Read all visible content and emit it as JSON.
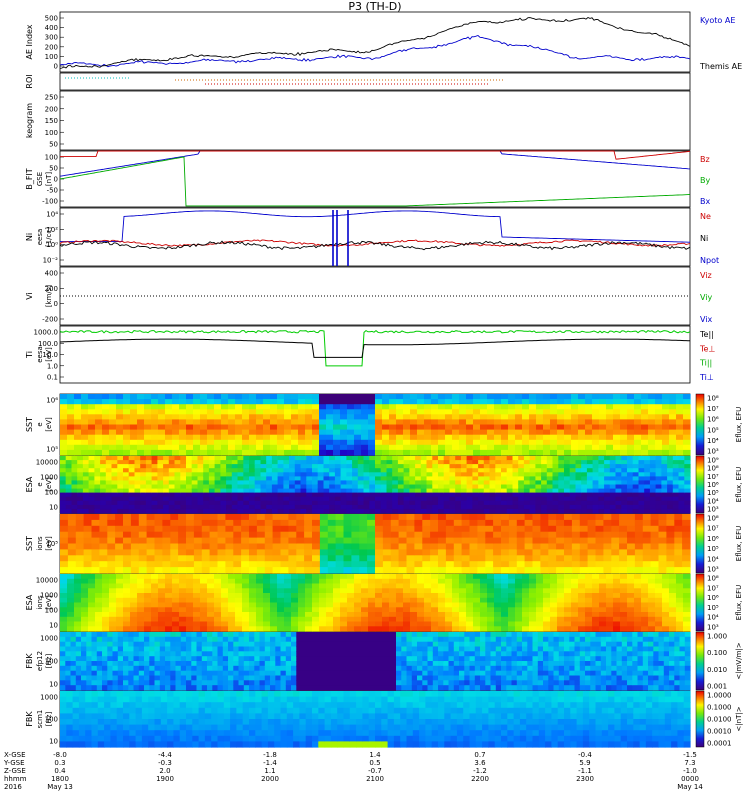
{
  "title": "P3 (TH-D)",
  "panels": [
    {
      "id": "ae",
      "ylabel": "AE Index",
      "unit": "",
      "yticks": [
        "500",
        "400",
        "300",
        "200",
        "100",
        "0"
      ],
      "legend": [
        {
          "text": "Kyoto AE",
          "color": "#0000cc"
        },
        {
          "text": "Themis AE",
          "color": "#000000"
        }
      ]
    },
    {
      "id": "roi",
      "ylabel": "ROI",
      "unit": "",
      "yticks": [],
      "legend": []
    },
    {
      "id": "keogram",
      "ylabel": "keogram",
      "unit": "",
      "yticks": [
        "250",
        "200",
        "150",
        "100",
        "50"
      ],
      "legend": []
    },
    {
      "id": "bfit",
      "ylabel": "B_FIT",
      "unit": "[nT]",
      "sub": "GSE",
      "yticks": [
        "100",
        "50",
        "0",
        "-50",
        "-100"
      ],
      "legend": [
        {
          "text": "Bz",
          "color": "#cc0000"
        },
        {
          "text": "By",
          "color": "#00aa00"
        },
        {
          "text": "Bx",
          "color": "#0000cc"
        }
      ]
    },
    {
      "id": "ni",
      "ylabel": "Ni",
      "unit": "[1/cc]",
      "sub": "eesa",
      "yticks": [
        "10⁴",
        "10²",
        "10⁰",
        "10⁻²"
      ],
      "legend": [
        {
          "text": "Ne",
          "color": "#cc0000"
        },
        {
          "text": "Ni",
          "color": "#000000"
        },
        {
          "text": "Npot",
          "color": "#0000cc"
        }
      ]
    },
    {
      "id": "vi",
      "ylabel": "Vi",
      "unit": "[km/s]",
      "yticks": [
        "400",
        "200",
        "0",
        "-200"
      ],
      "legend": [
        {
          "text": "Viz",
          "color": "#cc0000"
        },
        {
          "text": "Viy",
          "color": "#00aa00"
        },
        {
          "text": "Vix",
          "color": "#0000cc"
        }
      ]
    },
    {
      "id": "ti",
      "ylabel": "Ti",
      "unit": "[eV]",
      "sub": "eesa",
      "yticks": [
        "1000.0",
        "100.0",
        "10.0",
        "1.0",
        "0.1"
      ],
      "legend": [
        {
          "text": "Te||",
          "color": "#000000"
        },
        {
          "text": "Te⊥",
          "color": "#cc0000"
        },
        {
          "text": "Ti||",
          "color": "#00aa00"
        },
        {
          "text": "Ti⊥",
          "color": "#0000cc"
        }
      ]
    },
    {
      "id": "sst_e",
      "ylabel": "SST",
      "unit": "[eV]",
      "sub": "e",
      "yticks": [
        "10⁶",
        "10⁵"
      ],
      "cbar": [
        "10⁸",
        "10⁷",
        "10⁶",
        "10⁵",
        "10⁴",
        "10³"
      ],
      "cbar_label": "Eflux, EFU"
    },
    {
      "id": "esa_e",
      "ylabel": "ESA",
      "unit": "[eV]",
      "sub": "e",
      "yticks": [
        "10000",
        "1000",
        "100",
        "10"
      ],
      "cbar": [
        "10⁹",
        "10⁸",
        "10⁷",
        "10⁶",
        "10⁵",
        "10⁴",
        "10³"
      ],
      "cbar_label": "Eflux, EFU"
    },
    {
      "id": "sst_i",
      "ylabel": "SST",
      "unit": "[eV]",
      "sub": "ions",
      "yticks": [
        "10⁵"
      ],
      "cbar": [
        "10⁸",
        "10⁷",
        "10⁶",
        "10⁵",
        "10⁴",
        "10³"
      ],
      "cbar_label": "Eflux, EFU"
    },
    {
      "id": "esa_i",
      "ylabel": "ESA",
      "unit": "[eV]",
      "sub": "ions",
      "yticks": [
        "10000",
        "1000",
        "100",
        "10"
      ],
      "cbar": [
        "10⁸",
        "10⁷",
        "10⁶",
        "10⁵",
        "10⁴",
        "10³"
      ],
      "cbar_label": "Eflux, EFU"
    },
    {
      "id": "fbk_e",
      "ylabel": "FBK",
      "unit": "[Hz]",
      "sub": "efp12",
      "yticks": [
        "1000",
        "100",
        "10"
      ],
      "cbar": [
        "1.000",
        "0.100",
        "0.010",
        "0.001"
      ],
      "cbar_label": "<|mV/m|>"
    },
    {
      "id": "fbk_b",
      "ylabel": "FBK",
      "unit": "[Hz]",
      "sub": "scm1",
      "yticks": [
        "1000",
        "100",
        "10"
      ],
      "cbar": [
        "1.0000",
        "0.1000",
        "0.0100",
        "0.0010",
        "0.0001"
      ],
      "cbar_label": "<|nT|>"
    }
  ],
  "xaxis": {
    "row_labels": [
      "X-GSE",
      "Y-GSE",
      "Z-GSE",
      "hhmm",
      "2016"
    ],
    "columns": [
      {
        "x": "-8.0",
        "y": "0.3",
        "z": "0.4",
        "t": "1800",
        "d": "May 13"
      },
      {
        "x": "-4.4",
        "y": "-0.3",
        "z": "2.0",
        "t": "1900",
        "d": ""
      },
      {
        "x": "-1.8",
        "y": "-1.4",
        "z": "1.1",
        "t": "2000",
        "d": ""
      },
      {
        "x": "1.4",
        "y": "0.5",
        "z": "-0.7",
        "t": "2100",
        "d": ""
      },
      {
        "x": "0.7",
        "y": "3.6",
        "z": "-1.2",
        "t": "2200",
        "d": ""
      },
      {
        "x": "-0.4",
        "y": "5.9",
        "z": "-1.1",
        "t": "2300",
        "d": ""
      },
      {
        "x": "-1.5",
        "y": "7.3",
        "z": "-1.0",
        "t": "0000",
        "d": "May 14"
      }
    ]
  },
  "chart_data": {
    "type": "line",
    "title": "P3 (TH-D)",
    "x": [
      "1800",
      "1900",
      "2000",
      "2100",
      "2200",
      "2300",
      "0000"
    ],
    "series": [
      {
        "name": "Kyoto AE",
        "values": [
          60,
          80,
          110,
          130,
          300,
          120,
          120
        ]
      },
      {
        "name": "Themis AE",
        "values": [
          30,
          120,
          160,
          190,
          440,
          460,
          240
        ]
      }
    ]
  }
}
